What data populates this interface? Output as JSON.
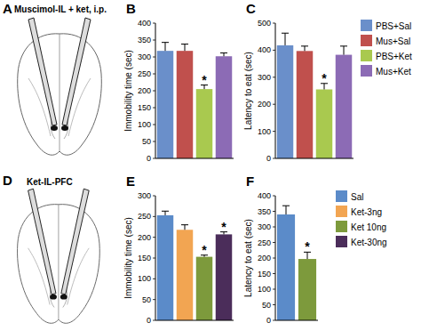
{
  "chart_data": [
    {
      "type": "bar",
      "panel_label": "B",
      "y_label": "Immobility time (sec)",
      "categories": [
        "PBS+Sal",
        "Mus+Sal",
        "PBS+Ket",
        "Mus+Ket"
      ],
      "values": [
        318,
        318,
        205,
        302
      ],
      "errors": [
        25,
        20,
        12,
        10
      ],
      "significance": [
        null,
        null,
        "*",
        null
      ],
      "colors": [
        "#6a8fca",
        "#c0504d",
        "#a9c94f",
        "#8c6bb5"
      ],
      "ylim": [
        0,
        400
      ],
      "yticks": [
        0,
        50,
        100,
        150,
        200,
        250,
        300,
        350,
        400
      ],
      "tick_labels": "y",
      "legend": "right"
    },
    {
      "type": "bar",
      "panel_label": "C",
      "y_label": "Latency to eat (sec)",
      "categories": [
        "PBS+Sal",
        "Mus+Sal",
        "PBS+Ket",
        "Mus+Ket"
      ],
      "values": [
        418,
        397,
        255,
        383
      ],
      "errors": [
        45,
        18,
        22,
        32
      ],
      "significance": [
        null,
        null,
        "*",
        null
      ],
      "colors": [
        "#6a8fca",
        "#c0504d",
        "#a9c94f",
        "#8c6bb5"
      ],
      "ylim": [
        0,
        500
      ],
      "yticks": [
        0,
        100,
        200,
        300,
        400,
        500
      ],
      "tick_labels": "y"
    },
    {
      "type": "bar",
      "panel_label": "E",
      "y_label": "Immobility time (sec)",
      "categories": [
        "Sal",
        "Ket-3ng",
        "Ket 10ng",
        "Ket-30ng"
      ],
      "values": [
        253,
        218,
        153,
        207
      ],
      "errors": [
        10,
        12,
        4,
        6
      ],
      "significance": [
        null,
        null,
        "*",
        "*"
      ],
      "colors": [
        "#5b8bc9",
        "#f2a552",
        "#7d9a3c",
        "#4b2d5a"
      ],
      "ylim": [
        0,
        300
      ],
      "yticks": [
        0,
        50,
        100,
        150,
        200,
        250,
        300
      ],
      "tick_labels": "y",
      "legend": "right"
    },
    {
      "type": "bar",
      "panel_label": "F",
      "y_label": "Latency to eat (sec)",
      "categories": [
        "Sal",
        "Ket 10ng"
      ],
      "values": [
        340,
        197
      ],
      "errors": [
        28,
        22
      ],
      "significance": [
        null,
        "*"
      ],
      "colors": [
        "#5b8bc9",
        "#7d9a3c"
      ],
      "ylim": [
        0,
        400
      ],
      "yticks": [
        0,
        50,
        100,
        150,
        200,
        250,
        300,
        350,
        400
      ],
      "tick_labels": "y"
    }
  ],
  "diagrams": [
    {
      "panel_label": "A",
      "title": "Muscimol-IL + ket, i.p."
    },
    {
      "panel_label": "D",
      "title": "Ket-IL-PFC"
    }
  ]
}
